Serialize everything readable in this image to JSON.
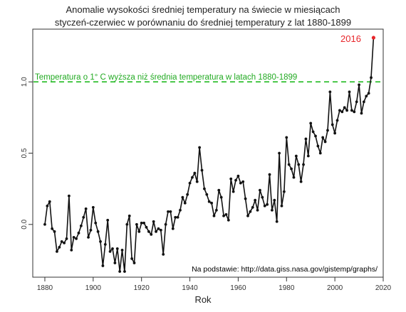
{
  "chart_data": {
    "type": "line",
    "title_line1": "Anomalie wysokości średniej temperatury na świecie w miesiącach",
    "title_line2": "styczeń-czerwiec w porównaniu do średniej temperatury z lat 1880-1899",
    "xlabel": "Rok",
    "ylabel": "",
    "xlim": [
      1875,
      2020
    ],
    "ylim": [
      -0.37,
      1.37
    ],
    "x_ticks": [
      1880,
      1900,
      1920,
      1940,
      1960,
      1980,
      2000,
      2020
    ],
    "y_ticks": [
      0.0,
      0.5,
      1.0
    ],
    "y_tick_labels": [
      "0.0",
      "0.5",
      "1.0"
    ],
    "grid": false,
    "reference_line": {
      "y": 1.0,
      "color": "#22bb22",
      "style": "dashed",
      "label": "Temperatura o 1° C wyższa niż średnia temperatura w latach 1880-1899"
    },
    "highlight_label": "2016",
    "highlight_color": "#e8262b",
    "line_color": "#111111",
    "source_note": "Na podstawie: http://data.giss.nasa.gov/gistemp/graphs/",
    "series": [
      {
        "x": [
          1880,
          1881,
          1882,
          1883,
          1884,
          1885,
          1886,
          1887,
          1888,
          1889,
          1890,
          1891,
          1892,
          1893,
          1894,
          1895,
          1896,
          1897,
          1898,
          1899,
          1900,
          1901,
          1902,
          1903,
          1904,
          1905,
          1906,
          1907,
          1908,
          1909,
          1910,
          1911,
          1912,
          1913,
          1914,
          1915,
          1916,
          1917,
          1918,
          1919,
          1920,
          1921,
          1922,
          1923,
          1924,
          1925,
          1926,
          1927,
          1928,
          1929,
          1930,
          1931,
          1932,
          1933,
          1934,
          1935,
          1936,
          1937,
          1938,
          1939,
          1940,
          1941,
          1942,
          1943,
          1944,
          1945,
          1946,
          1947,
          1948,
          1949,
          1950,
          1951,
          1952,
          1953,
          1954,
          1955,
          1956,
          1957,
          1958,
          1959,
          1960,
          1961,
          1962,
          1963,
          1964,
          1965,
          1966,
          1967,
          1968,
          1969,
          1970,
          1971,
          1972,
          1973,
          1974,
          1975,
          1976,
          1977,
          1978,
          1979,
          1980,
          1981,
          1982,
          1983,
          1984,
          1985,
          1986,
          1987,
          1988,
          1989,
          1990,
          1991,
          1992,
          1993,
          1994,
          1995,
          1996,
          1997,
          1998,
          1999,
          2000,
          2001,
          2002,
          2003,
          2004,
          2005,
          2006,
          2007,
          2008,
          2009,
          2010,
          2011,
          2012,
          2013,
          2014,
          2015,
          2016
        ],
        "y": [
          0.0,
          0.13,
          0.16,
          -0.03,
          -0.05,
          -0.19,
          -0.16,
          -0.12,
          -0.13,
          -0.1,
          0.2,
          -0.18,
          -0.09,
          -0.1,
          -0.06,
          -0.01,
          0.05,
          0.11,
          -0.09,
          -0.04,
          0.12,
          0.01,
          -0.05,
          -0.12,
          -0.29,
          -0.14,
          0.03,
          -0.19,
          -0.17,
          -0.27,
          -0.17,
          -0.33,
          -0.18,
          -0.33,
          0.0,
          0.06,
          -0.24,
          -0.27,
          0.0,
          -0.05,
          0.01,
          0.01,
          -0.02,
          -0.05,
          -0.07,
          0.02,
          -0.05,
          -0.03,
          -0.04,
          -0.21,
          0.0,
          0.09,
          0.09,
          -0.03,
          0.05,
          0.05,
          0.1,
          0.19,
          0.15,
          0.21,
          0.29,
          0.33,
          0.36,
          0.3,
          0.54,
          0.38,
          0.25,
          0.21,
          0.16,
          0.15,
          0.06,
          0.1,
          0.24,
          0.19,
          0.06,
          0.07,
          0.03,
          0.32,
          0.23,
          0.31,
          0.34,
          0.29,
          0.3,
          0.18,
          0.06,
          0.09,
          0.12,
          0.17,
          0.1,
          0.24,
          0.19,
          0.13,
          0.14,
          0.35,
          0.1,
          0.17,
          0.02,
          0.5,
          0.13,
          0.23,
          0.61,
          0.42,
          0.39,
          0.33,
          0.48,
          0.42,
          0.3,
          0.42,
          0.6,
          0.48,
          0.71,
          0.65,
          0.62,
          0.55,
          0.5,
          0.61,
          0.58,
          0.66,
          0.93,
          0.7,
          0.64,
          0.73,
          0.8,
          0.79,
          0.82,
          0.8,
          0.93,
          0.8,
          0.79,
          0.86,
          0.98,
          0.78,
          0.86,
          0.9,
          0.92,
          1.03,
          1.31
        ]
      }
    ]
  }
}
